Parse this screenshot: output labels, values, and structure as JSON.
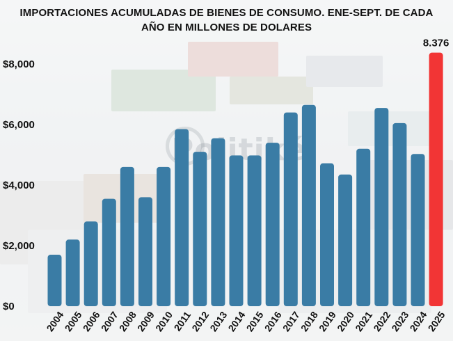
{
  "header": {
    "title_line1": "IMPORTACIONES ACUMULADAS DE BIENES DE CONSUMO. ENE-SEPT. DE CADA",
    "title_line2": "AÑO EN MILLONES DE DOLARES"
  },
  "watermark": "Politiké",
  "colors": {
    "bar": "#3a7ca5",
    "highlight": "#f23535",
    "text": "#111111"
  },
  "chart_data": {
    "type": "bar",
    "title": "IMPORTACIONES ACUMULADAS DE BIENES DE CONSUMO. ENE-SEPT. DE CADA AÑO EN MILLONES DE DOLARES",
    "categories": [
      "2004",
      "2005",
      "2006",
      "2007",
      "2008",
      "2009",
      "2010",
      "2011",
      "2012",
      "2013",
      "2014",
      "2015",
      "2016",
      "2017",
      "2018",
      "2019",
      "2020",
      "2021",
      "2022",
      "2023",
      "2024",
      "2025"
    ],
    "values": [
      1700,
      2200,
      2800,
      3550,
      4600,
      3600,
      4600,
      5850,
      5100,
      5550,
      4980,
      4980,
      5400,
      6400,
      6650,
      4720,
      4350,
      5200,
      6550,
      6050,
      5030,
      8376
    ],
    "highlight_index": 21,
    "data_labels": [
      {
        "category": "2025",
        "text": "8.376"
      }
    ],
    "yticks": [
      "$0",
      "$2,000",
      "$4,000",
      "$6,000",
      "$8,000"
    ],
    "ytick_values": [
      0,
      2000,
      4000,
      6000,
      8000
    ],
    "ylim": [
      0,
      9500
    ],
    "grid": false,
    "legend": "none"
  }
}
